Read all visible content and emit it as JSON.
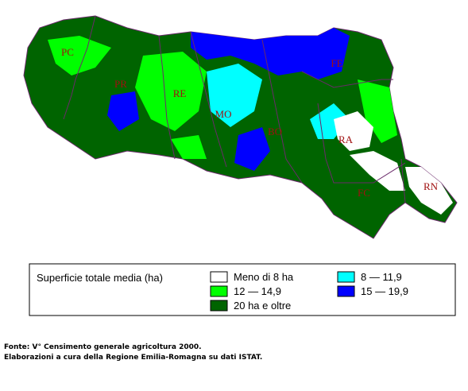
{
  "map": {
    "provinces": [
      "PC",
      "PR",
      "RE",
      "MO",
      "BO",
      "FE",
      "RA",
      "FC",
      "RN"
    ]
  },
  "legend": {
    "title": "Superficie totale media (ha)",
    "classes": [
      {
        "label": "Meno di 8 ha",
        "color": "#ffffff"
      },
      {
        "label": "8 — 11,9",
        "color": "#00ffff"
      },
      {
        "label": "12 — 14,9",
        "color": "#00ff00"
      },
      {
        "label": "15 — 19,9",
        "color": "#0000ff"
      },
      {
        "label": "20 ha e oltre",
        "color": "#006400"
      }
    ]
  },
  "source": [
    "Fonte: V° Censimento generale agricoltura 2000.",
    "Elaborazioni a cura della Regione Emilia-Romagna su dati ISTAT."
  ]
}
